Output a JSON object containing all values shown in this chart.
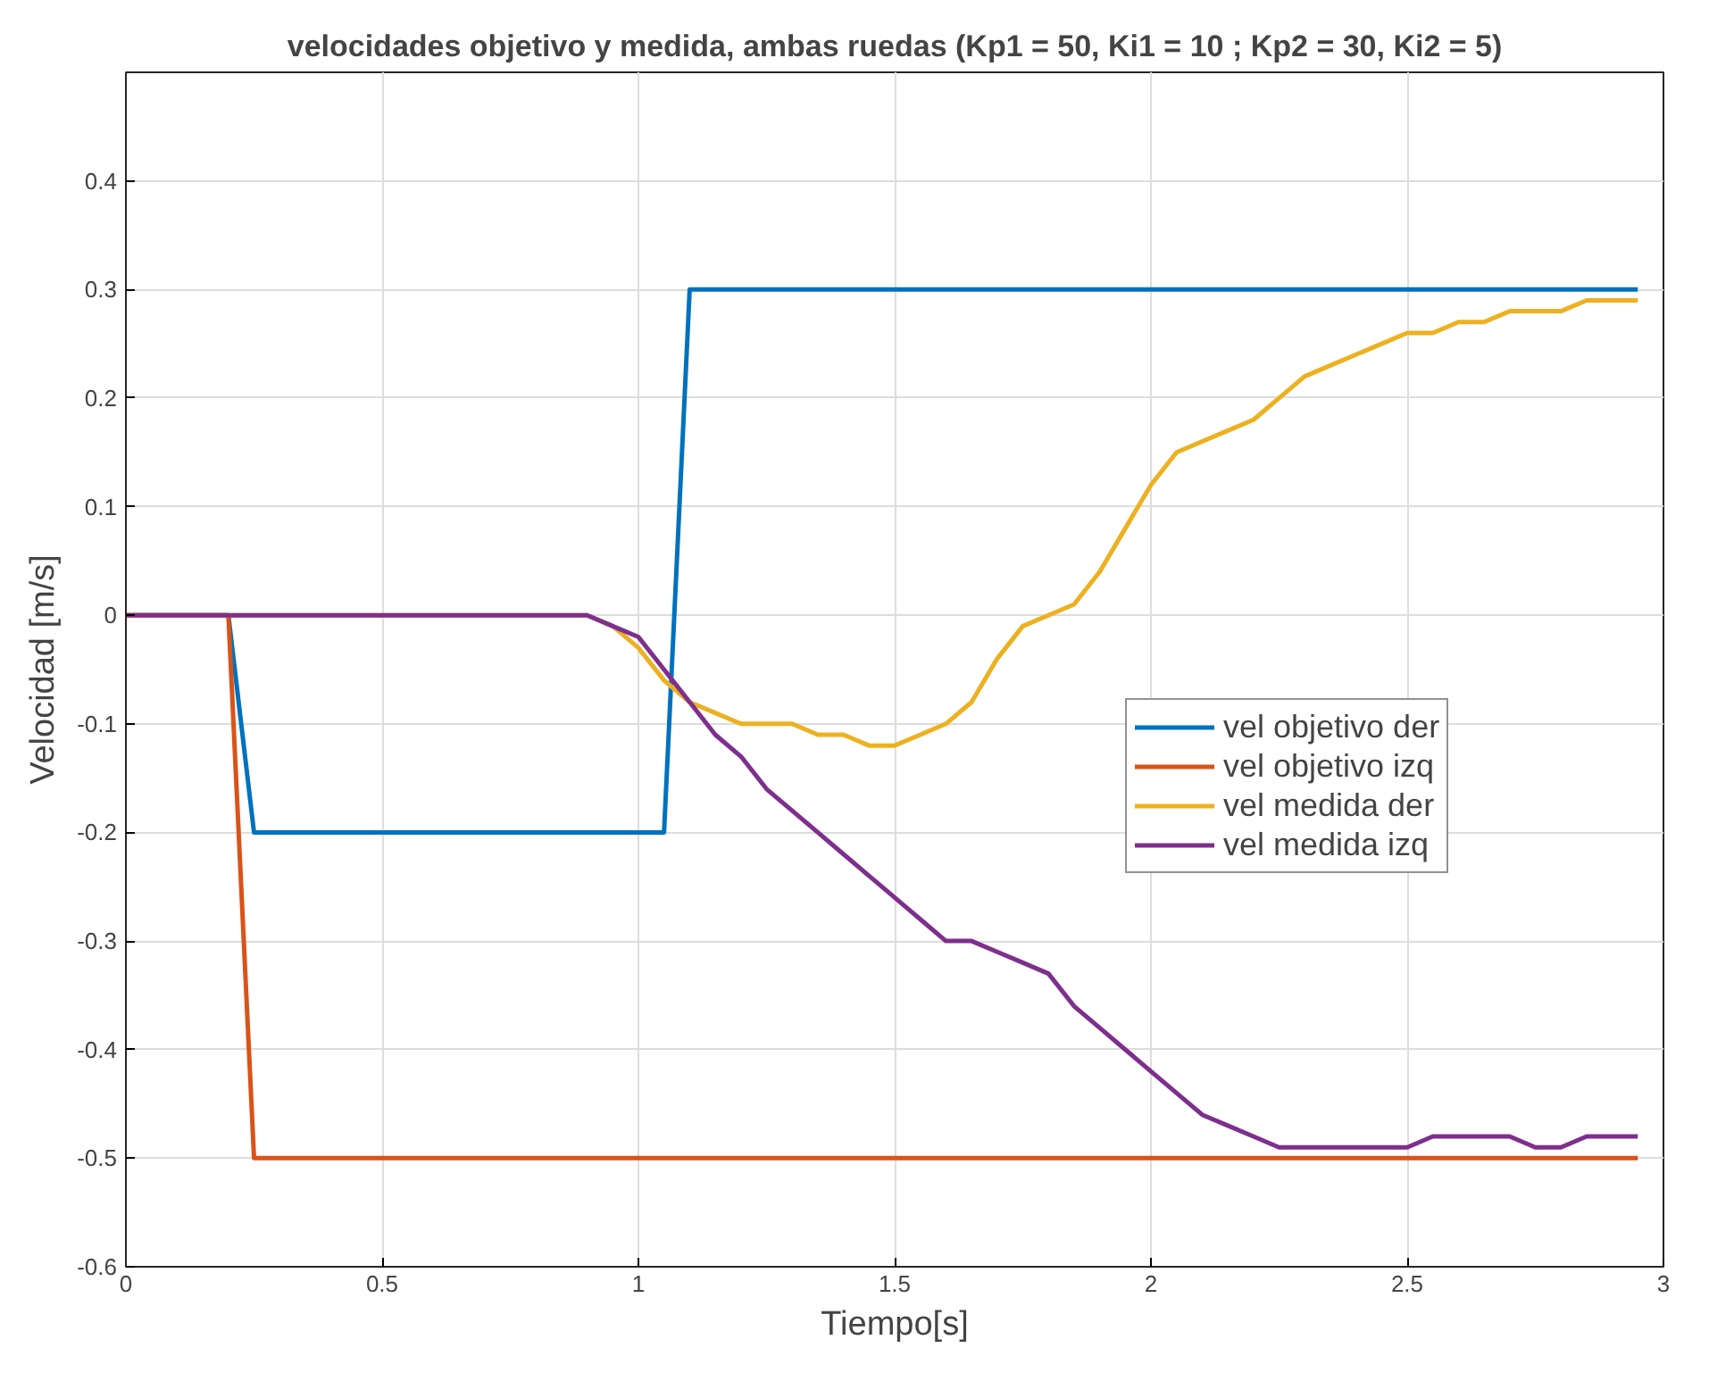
{
  "chart_data": {
    "type": "line",
    "title": "velocidades objetivo y medida, ambas ruedas (Kp1 = 50, Ki1 = 10 ; Kp2 = 30, Ki2 = 5)",
    "xlabel": "Tiempo[s]",
    "ylabel": "Velocidad [m/s]",
    "xlim": [
      0,
      3
    ],
    "ylim": [
      -0.6,
      0.5
    ],
    "xticks": [
      0,
      0.5,
      1,
      1.5,
      2,
      2.5,
      3
    ],
    "yticks": [
      -0.6,
      -0.5,
      -0.4,
      -0.3,
      -0.2,
      -0.1,
      0,
      0.1,
      0.2,
      0.3,
      0.4
    ],
    "grid": true,
    "legend": "right",
    "marker": "none",
    "line_style": "solid",
    "series": [
      {
        "name": "vel objetivo der",
        "color": "#0072bd",
        "x": [
          0,
          0.2,
          0.25,
          1.05,
          1.1,
          2.95
        ],
        "values": [
          0,
          0,
          -0.2,
          -0.2,
          0.3,
          0.3
        ]
      },
      {
        "name": "vel objetivo izq",
        "color": "#d95319",
        "x": [
          0,
          0.2,
          0.25,
          2.95
        ],
        "values": [
          0,
          0,
          -0.5,
          -0.5
        ]
      },
      {
        "name": "vel medida der",
        "color": "#edb120",
        "x": [
          0,
          0.9,
          0.95,
          1.0,
          1.05,
          1.1,
          1.15,
          1.2,
          1.25,
          1.3,
          1.35,
          1.4,
          1.45,
          1.5,
          1.55,
          1.6,
          1.65,
          1.7,
          1.75,
          1.8,
          1.85,
          1.9,
          1.95,
          2.0,
          2.05,
          2.1,
          2.15,
          2.2,
          2.25,
          2.3,
          2.35,
          2.4,
          2.45,
          2.5,
          2.55,
          2.6,
          2.65,
          2.7,
          2.75,
          2.8,
          2.85,
          2.9,
          2.95
        ],
        "values": [
          0,
          0,
          -0.01,
          -0.03,
          -0.06,
          -0.08,
          -0.09,
          -0.1,
          -0.1,
          -0.1,
          -0.11,
          -0.11,
          -0.12,
          -0.12,
          -0.11,
          -0.1,
          -0.08,
          -0.04,
          -0.01,
          0,
          0.01,
          0.04,
          0.08,
          0.12,
          0.15,
          0.16,
          0.17,
          0.18,
          0.2,
          0.22,
          0.23,
          0.24,
          0.25,
          0.26,
          0.26,
          0.27,
          0.27,
          0.28,
          0.28,
          0.28,
          0.29,
          0.29,
          0.29
        ]
      },
      {
        "name": "vel medida izq",
        "color": "#7e2f8e",
        "x": [
          0,
          0.9,
          0.95,
          1.0,
          1.05,
          1.1,
          1.15,
          1.2,
          1.25,
          1.3,
          1.35,
          1.4,
          1.45,
          1.5,
          1.55,
          1.6,
          1.65,
          1.7,
          1.75,
          1.8,
          1.85,
          1.9,
          1.95,
          2.0,
          2.05,
          2.1,
          2.15,
          2.2,
          2.25,
          2.3,
          2.35,
          2.4,
          2.45,
          2.5,
          2.55,
          2.6,
          2.65,
          2.7,
          2.75,
          2.8,
          2.85,
          2.9,
          2.95
        ],
        "values": [
          0,
          0,
          -0.01,
          -0.02,
          -0.05,
          -0.08,
          -0.11,
          -0.13,
          -0.16,
          -0.18,
          -0.2,
          -0.22,
          -0.24,
          -0.26,
          -0.28,
          -0.3,
          -0.3,
          -0.31,
          -0.32,
          -0.33,
          -0.36,
          -0.38,
          -0.4,
          -0.42,
          -0.44,
          -0.46,
          -0.47,
          -0.48,
          -0.49,
          -0.49,
          -0.49,
          -0.49,
          -0.49,
          -0.49,
          -0.48,
          -0.48,
          -0.48,
          -0.48,
          -0.49,
          -0.49,
          -0.48,
          -0.48,
          -0.48
        ]
      }
    ]
  }
}
